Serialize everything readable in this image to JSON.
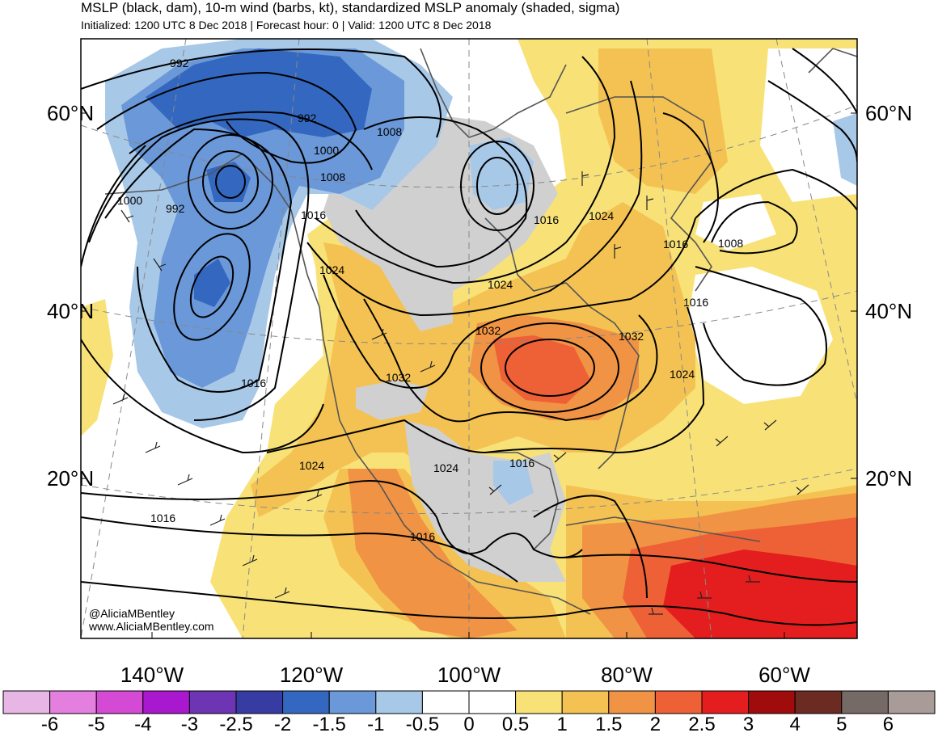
{
  "title": {
    "line1": "MSLP (black, dam), 10-m wind (barbs, kt), standardized MSLP anomaly (shaded, sigma)",
    "line2": "Initialized: 1200 UTC 8 Dec 2018 | Forecast hour: 0 | Valid: 1200 UTC 8 Dec 2018"
  },
  "lat_labels": {
    "n60": "60°N",
    "n40": "40°N",
    "n20": "20°N"
  },
  "lon_labels": [
    "140°W",
    "120°W",
    "100°W",
    "80°W",
    "60°W"
  ],
  "contour_labels": [
    "992",
    "992",
    "1000",
    "1008",
    "1000",
    "1008",
    "992",
    "1016",
    "1024",
    "1016",
    "1024",
    "1016",
    "1008",
    "1024",
    "1016",
    "1032",
    "1032",
    "1032",
    "1024",
    "1024",
    "1024",
    "1016",
    "1016",
    "1016",
    "1016"
  ],
  "credit": {
    "handle": "@AliciaMBentley",
    "url": "www.AliciaMBentley.com"
  },
  "colorbar": {
    "ticks": [
      "-6",
      "-5",
      "-4",
      "-3",
      "-2.5",
      "-2",
      "-1.5",
      "-1",
      "-0.5",
      "0",
      "0.5",
      "1",
      "1.5",
      "2",
      "2.5",
      "3",
      "4",
      "5",
      "6"
    ],
    "colors": [
      "#e8b6e4",
      "#e57fdf",
      "#d44ad4",
      "#a918ce",
      "#6d34b3",
      "#373ca2",
      "#3468c0",
      "#6a98d8",
      "#a8c8e8",
      "#ffffff",
      "#ffffff",
      "#f8e278",
      "#f4c252",
      "#f09344",
      "#ee6136",
      "#e41e1e",
      "#a00c0c",
      "#6b2a22",
      "#756a66",
      "#a99c98"
    ]
  },
  "anomaly_colors": {
    "neg_strong": "#3468c0",
    "neg_mid": "#6a98d8",
    "neg_weak": "#a8c8e8",
    "neutral": "#d0d0d0",
    "pos_weak": "#f8e278",
    "pos_mid": "#f4c252",
    "pos_strong": "#f09344",
    "pos_stronger": "#ee6136",
    "pos_max": "#e41e1e"
  }
}
